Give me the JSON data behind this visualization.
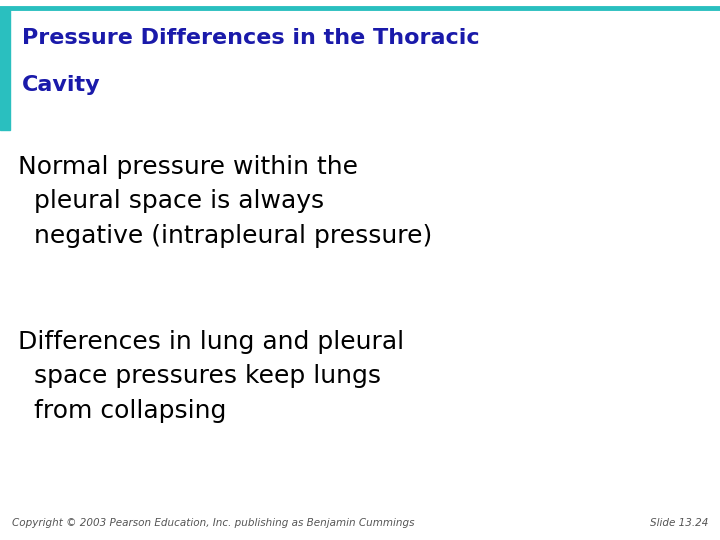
{
  "title_line1": "Pressure Differences in the Thoracic",
  "title_line2": "Cavity",
  "title_color": "#1a1aaa",
  "accent_bar_color": "#2abfbf",
  "background_color": "#ffffff",
  "body_text_1": "Normal pressure within the\n  pleural space is always\n  negative (intrapleural pressure)",
  "body_text_2": "Differences in lung and pleural\n  space pressures keep lungs\n  from collapsing",
  "body_color": "#000000",
  "footer_left": "Copyright © 2003 Pearson Education, Inc. publishing as Benjamin Cummings",
  "footer_right": "Slide 13.24",
  "footer_color": "#555555",
  "title_fontsize": 16,
  "body_fontsize": 18,
  "footer_fontsize": 7.5
}
